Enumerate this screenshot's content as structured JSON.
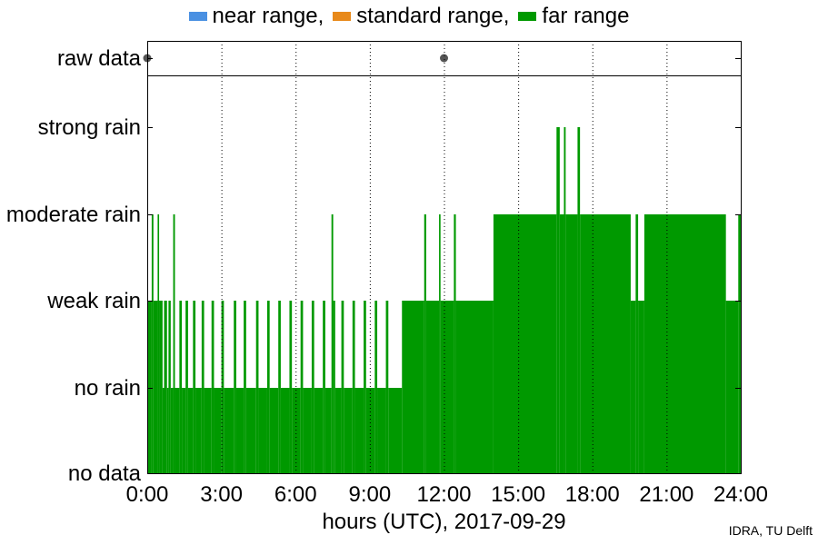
{
  "chart_data": {
    "type": "area",
    "legend": {
      "placement": "top-center",
      "entries": [
        {
          "label": "near range,",
          "color": "#4a90e2"
        },
        {
          "label": "standard range,",
          "color": "#e8891a"
        },
        {
          "label": "far range",
          "color": "#009900"
        }
      ]
    },
    "xlabel": "hours (UTC), 2017-09-29",
    "xlim": [
      0,
      24
    ],
    "xticks": [
      {
        "value": 0,
        "label": "0:00"
      },
      {
        "value": 3,
        "label": "3:00"
      },
      {
        "value": 6,
        "label": "6:00"
      },
      {
        "value": 9,
        "label": "9:00"
      },
      {
        "value": 12,
        "label": "12:00"
      },
      {
        "value": 15,
        "label": "15:00"
      },
      {
        "value": 18,
        "label": "18:00"
      },
      {
        "value": 21,
        "label": "21:00"
      },
      {
        "value": 24,
        "label": "24:00"
      }
    ],
    "ycategories": [
      "no data",
      "no rain",
      "weak rain",
      "moderate rain",
      "strong rain"
    ],
    "raw_data": {
      "label": "raw data",
      "points": [
        0.0,
        12.0
      ],
      "color": "#555555"
    },
    "series": [
      {
        "name": "far range",
        "color": "#009900",
        "segments": [
          [
            0.0,
            0.18,
            2
          ],
          [
            0.18,
            0.25,
            3
          ],
          [
            0.25,
            0.42,
            2
          ],
          [
            0.42,
            0.48,
            3
          ],
          [
            0.48,
            0.62,
            2
          ],
          [
            0.62,
            0.68,
            1
          ],
          [
            0.68,
            0.8,
            2
          ],
          [
            0.8,
            0.86,
            1
          ],
          [
            0.86,
            0.95,
            2
          ],
          [
            0.95,
            1.05,
            1
          ],
          [
            1.05,
            1.12,
            3
          ],
          [
            1.12,
            1.3,
            1
          ],
          [
            1.3,
            1.4,
            2
          ],
          [
            1.4,
            1.55,
            1
          ],
          [
            1.55,
            1.65,
            2
          ],
          [
            1.65,
            1.85,
            1
          ],
          [
            1.85,
            1.95,
            2
          ],
          [
            1.95,
            2.2,
            1
          ],
          [
            2.2,
            2.3,
            2
          ],
          [
            2.3,
            2.6,
            1
          ],
          [
            2.6,
            2.7,
            2
          ],
          [
            2.7,
            3.0,
            1
          ],
          [
            3.0,
            3.1,
            2
          ],
          [
            3.1,
            3.5,
            1
          ],
          [
            3.5,
            3.6,
            2
          ],
          [
            3.6,
            3.9,
            1
          ],
          [
            3.9,
            4.0,
            2
          ],
          [
            4.0,
            4.4,
            1
          ],
          [
            4.4,
            4.5,
            2
          ],
          [
            4.5,
            4.85,
            1
          ],
          [
            4.85,
            4.95,
            2
          ],
          [
            4.95,
            5.3,
            1
          ],
          [
            5.3,
            5.4,
            2
          ],
          [
            5.4,
            5.75,
            1
          ],
          [
            5.75,
            5.85,
            2
          ],
          [
            5.85,
            6.2,
            1
          ],
          [
            6.2,
            6.3,
            2
          ],
          [
            6.3,
            6.65,
            1
          ],
          [
            6.65,
            6.75,
            2
          ],
          [
            6.75,
            7.1,
            1
          ],
          [
            7.1,
            7.2,
            2
          ],
          [
            7.2,
            7.45,
            1
          ],
          [
            7.45,
            7.52,
            3
          ],
          [
            7.52,
            7.6,
            2
          ],
          [
            7.6,
            7.85,
            1
          ],
          [
            7.85,
            7.95,
            2
          ],
          [
            7.95,
            8.3,
            1
          ],
          [
            8.3,
            8.4,
            2
          ],
          [
            8.4,
            8.75,
            1
          ],
          [
            8.75,
            8.85,
            2
          ],
          [
            8.85,
            9.2,
            1
          ],
          [
            9.2,
            9.3,
            2
          ],
          [
            9.3,
            9.65,
            1
          ],
          [
            9.65,
            9.75,
            2
          ],
          [
            9.75,
            10.3,
            1
          ],
          [
            10.3,
            11.2,
            2
          ],
          [
            11.2,
            11.28,
            3
          ],
          [
            11.28,
            11.8,
            2
          ],
          [
            11.8,
            11.86,
            3
          ],
          [
            11.86,
            12.4,
            2
          ],
          [
            12.4,
            12.48,
            3
          ],
          [
            12.48,
            14.0,
            2
          ],
          [
            14.0,
            16.55,
            3
          ],
          [
            16.55,
            16.68,
            4
          ],
          [
            16.68,
            16.85,
            3
          ],
          [
            16.85,
            16.92,
            4
          ],
          [
            16.92,
            17.4,
            3
          ],
          [
            17.4,
            17.5,
            4
          ],
          [
            17.5,
            19.55,
            3
          ],
          [
            19.55,
            19.75,
            2
          ],
          [
            19.75,
            19.85,
            3
          ],
          [
            19.85,
            20.1,
            2
          ],
          [
            20.1,
            23.4,
            3
          ],
          [
            23.4,
            23.9,
            2
          ],
          [
            23.9,
            24.0,
            3
          ]
        ]
      }
    ],
    "grid": {
      "vertical": true,
      "style": "dotted"
    },
    "credit": "IDRA, TU Delft"
  }
}
